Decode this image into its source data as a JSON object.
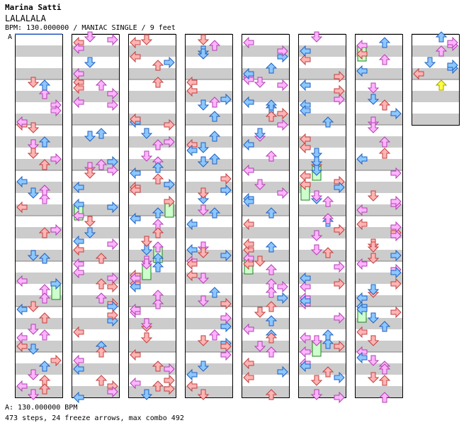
{
  "header": {
    "artist": "Marina Satti",
    "title": "LALALALA",
    "meta": "BPM: 130.000000 / MANIAC SINGLE / 9 feet"
  },
  "bpm_marker": "A",
  "footer": {
    "bpm_line": "A: 130.000000 BPM",
    "stats_line": "473 steps, 24 freeze arrows, max combo 492"
  },
  "colors": {
    "band_dark": "#cccccc",
    "band_light": "#ffffff",
    "border": "#000000",
    "red_arrow": "#ffb4b4",
    "red_edge": "#c04040",
    "blue_arrow": "#8cc8ff",
    "blue_edge": "#2060c0",
    "pink_arrow": "#ffb4ff",
    "pink_edge": "#b040b0",
    "green_arrow": "#66ee66",
    "green_edge": "#208020",
    "yellow_arrow": "#ffff40",
    "freeze_fill": "#ccffcc"
  },
  "chart_data": {
    "type": "step-chart",
    "lanes": [
      "left",
      "down",
      "up",
      "right"
    ],
    "columns": 8,
    "measures_per_column": 8,
    "total_measures": 58,
    "steps": 473,
    "freeze_arrows": 24,
    "max_combo": 492,
    "bpm": 130.0
  }
}
